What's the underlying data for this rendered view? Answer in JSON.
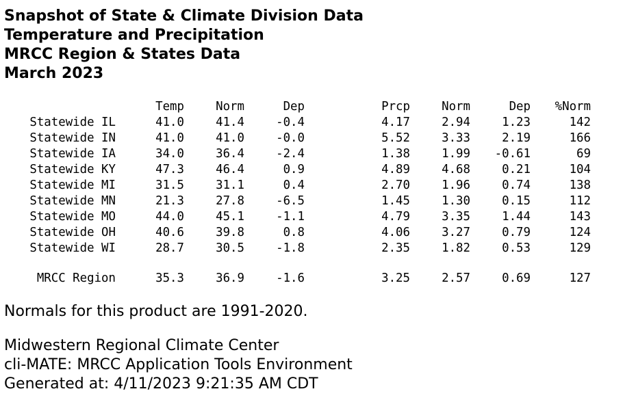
{
  "title_lines": [
    "Snapshot of State & Climate Division Data",
    "Temperature and Precipitation",
    "MRCC Region & States Data",
    "March 2023"
  ],
  "table": {
    "headers": [
      "",
      "Temp",
      "Norm",
      "Dep",
      "Prcp",
      "Norm",
      "Dep",
      "%Norm"
    ],
    "rows": [
      [
        "Statewide IL",
        "41.0",
        "41.4",
        "-0.4",
        "4.17",
        "2.94",
        "1.23",
        "142"
      ],
      [
        "Statewide IN",
        "41.0",
        "41.0",
        "-0.0",
        "5.52",
        "3.33",
        "2.19",
        "166"
      ],
      [
        "Statewide IA",
        "34.0",
        "36.4",
        "-2.4",
        "1.38",
        "1.99",
        "-0.61",
        "69"
      ],
      [
        "Statewide KY",
        "47.3",
        "46.4",
        "0.9",
        "4.89",
        "4.68",
        "0.21",
        "104"
      ],
      [
        "Statewide MI",
        "31.5",
        "31.1",
        "0.4",
        "2.70",
        "1.96",
        "0.74",
        "138"
      ],
      [
        "Statewide MN",
        "21.3",
        "27.8",
        "-6.5",
        "1.45",
        "1.30",
        "0.15",
        "112"
      ],
      [
        "Statewide MO",
        "44.0",
        "45.1",
        "-1.1",
        "4.79",
        "3.35",
        "1.44",
        "143"
      ],
      [
        "Statewide OH",
        "40.6",
        "39.8",
        "0.8",
        "4.06",
        "3.27",
        "0.79",
        "124"
      ],
      [
        "Statewide WI",
        "28.7",
        "30.5",
        "-1.8",
        "2.35",
        "1.82",
        "0.53",
        "129"
      ]
    ],
    "region_row": [
      "MRCC Region",
      "35.3",
      "36.9",
      "-1.6",
      "3.25",
      "2.57",
      "0.69",
      "127"
    ]
  },
  "normals_note": "Normals for this product are 1991-2020.",
  "credits": {
    "org": "Midwestern Regional Climate Center",
    "tool": "cli-MATE: MRCC Application Tools Environment",
    "generated": "Generated at: 4/11/2023 9:21:35 AM CDT"
  }
}
